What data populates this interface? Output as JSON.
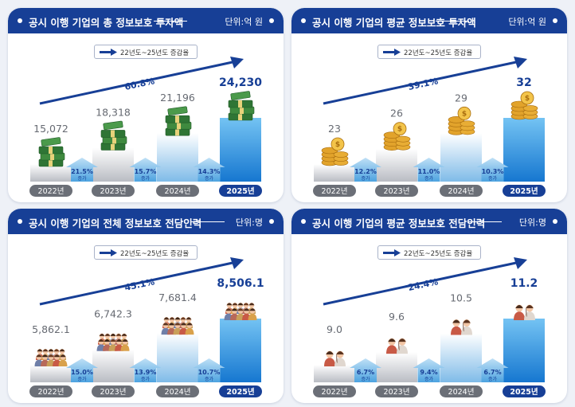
{
  "legend_label": "22년도~25년도 증감율",
  "increase_word": "증가",
  "colors": {
    "header": "#173f96",
    "accent": "#173f96",
    "gray": "#6b6f77"
  },
  "chart_data": [
    {
      "type": "bar",
      "title": "공시 이행 기업의 총 정보보호 투자액",
      "unit": "단위:억 원",
      "icon": "money-stack",
      "categories": [
        "2022년",
        "2023년",
        "2024년",
        "2025년"
      ],
      "values": [
        15072,
        18318,
        21196,
        24230
      ],
      "value_labels": [
        "15,072",
        "18,318",
        "21,196",
        "24,230"
      ],
      "growth": [
        "21.5%",
        "15.7%",
        "14.3%"
      ],
      "overall_growth": "60.8%"
    },
    {
      "type": "bar",
      "title": "공시 이행 기업의 평균 정보보호 투자액",
      "unit": "단위:억 원",
      "icon": "coin-stack",
      "categories": [
        "2022년",
        "2023년",
        "2024년",
        "2025년"
      ],
      "values": [
        23,
        26,
        29,
        32
      ],
      "value_labels": [
        "23",
        "26",
        "29",
        "32"
      ],
      "growth": [
        "12.2%",
        "11.0%",
        "10.3%"
      ],
      "overall_growth": "39.1%"
    },
    {
      "type": "bar",
      "title": "공시 이행 기업의 전체 정보보호 전담인력",
      "unit": "단위:명",
      "icon": "people-group",
      "categories": [
        "2022년",
        "2023년",
        "2024년",
        "2025년"
      ],
      "values": [
        5862.1,
        6742.3,
        7681.4,
        8506.1
      ],
      "value_labels": [
        "5,862.1",
        "6,742.3",
        "7,681.4",
        "8,506.1"
      ],
      "growth": [
        "15.0%",
        "13.9%",
        "10.7%"
      ],
      "overall_growth": "45.1%"
    },
    {
      "type": "bar",
      "title": "공시 이행 기업의 평균 정보보호 전담인력",
      "unit": "단위:명",
      "icon": "people-pair",
      "categories": [
        "2022년",
        "2023년",
        "2024년",
        "2025년"
      ],
      "values": [
        9.0,
        9.6,
        10.5,
        11.2
      ],
      "value_labels": [
        "9.0",
        "9.6",
        "10.5",
        "11.2"
      ],
      "growth": [
        "6.7%",
        "9.4%",
        "6.7%"
      ],
      "overall_growth": "24.4%"
    }
  ]
}
